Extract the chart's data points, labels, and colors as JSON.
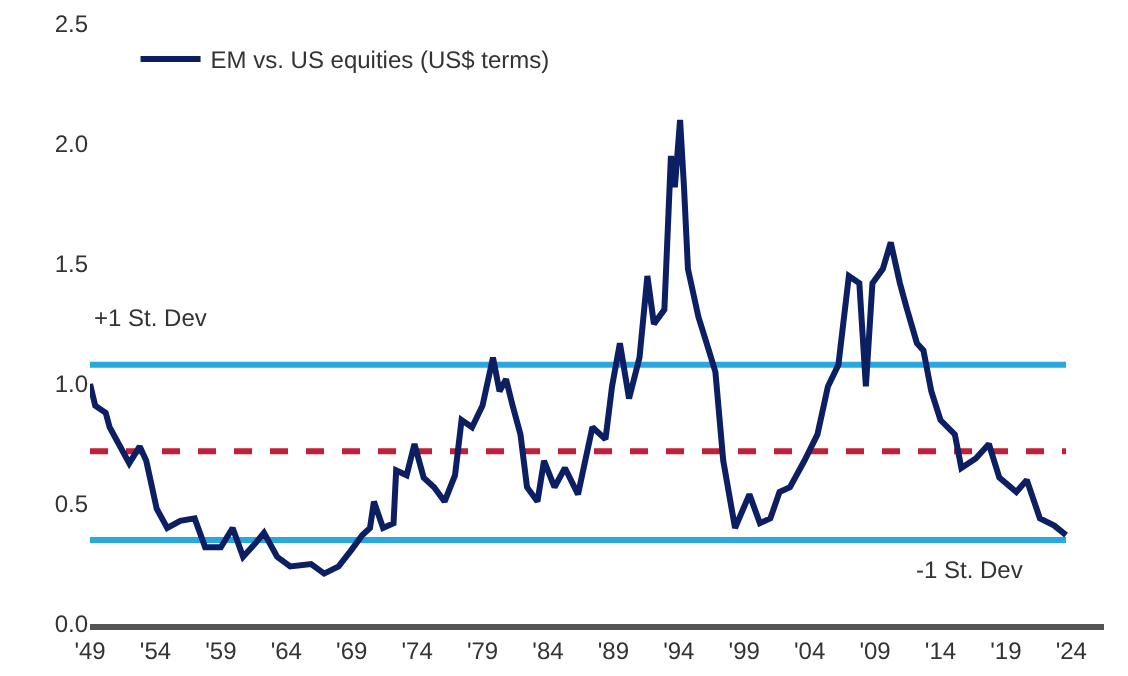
{
  "chart_data": {
    "type": "line",
    "legend": "top left",
    "grid": false,
    "marker": "none",
    "line_style": "solid",
    "xlim": [
      1949,
      2026.5
    ],
    "xticks": [
      {
        "value": 1949,
        "label": "'49"
      },
      {
        "value": 1954,
        "label": "'54"
      },
      {
        "value": 1959,
        "label": "'59"
      },
      {
        "value": 1964,
        "label": "'64"
      },
      {
        "value": 1969,
        "label": "'69"
      },
      {
        "value": 1974,
        "label": "'74"
      },
      {
        "value": 1979,
        "label": "'79"
      },
      {
        "value": 1984,
        "label": "'84"
      },
      {
        "value": 1989,
        "label": "'89"
      },
      {
        "value": 1994,
        "label": "'94"
      },
      {
        "value": 1999,
        "label": "'99"
      },
      {
        "value": 2004,
        "label": "'04"
      },
      {
        "value": 2009,
        "label": "'09"
      },
      {
        "value": 2014,
        "label": "'14"
      },
      {
        "value": 2019,
        "label": "'19"
      },
      {
        "value": 2024,
        "label": "'24"
      }
    ],
    "ylim": [
      0,
      2.5
    ],
    "yticks": [
      {
        "value": 0,
        "label": "0.0"
      },
      0.5,
      {
        "value": 1,
        "label": "1.0"
      },
      1.5,
      {
        "value": 2,
        "label": "2.0"
      },
      2.5
    ],
    "ref_lines": [
      {
        "axis": "y",
        "value": 1.08,
        "label": "+1 St. Dev",
        "color": "#29a8e0",
        "line_style": "solid"
      },
      {
        "axis": "y",
        "value": 0.72,
        "label": null,
        "color": "#c0203a",
        "line_style": "dashed"
      },
      {
        "axis": "y",
        "value": 0.35,
        "label": "-1 St. Dev",
        "color": "#29a8e0",
        "line_style": "solid"
      }
    ],
    "series": [
      {
        "name": "EM vs. US equities (US$ terms)",
        "color": "#0d1f63",
        "x": [
          1949.0,
          1949.4,
          1950.2,
          1950.5,
          1951.0,
          1952.0,
          1952.8,
          1953.3,
          1954.1,
          1954.9,
          1955.9,
          1957.0,
          1957.8,
          1959.0,
          1959.9,
          1960.7,
          1961.7,
          1962.3,
          1963.3,
          1964.3,
          1965.9,
          1966.9,
          1968.0,
          1969.0,
          1969.8,
          1970.4,
          1970.7,
          1971.4,
          1972.2,
          1972.4,
          1973.2,
          1973.8,
          1974.5,
          1975.3,
          1976.1,
          1976.9,
          1977.4,
          1978.2,
          1979.0,
          1979.8,
          1980.3,
          1980.8,
          1981.3,
          1981.9,
          1982.4,
          1983.2,
          1983.7,
          1984.5,
          1985.3,
          1986.3,
          1987.4,
          1988.4,
          1988.9,
          1989.5,
          1990.2,
          1991.0,
          1991.6,
          1992.1,
          1992.9,
          1993.4,
          1993.7,
          1994.1,
          1994.4,
          1994.7,
          1995.5,
          1996.3,
          1996.8,
          1997.4,
          1998.3,
          1999.4,
          2000.2,
          2001.0,
          2001.7,
          2002.5,
          2003.6,
          2004.6,
          2005.4,
          2006.2,
          2007.0,
          2007.8,
          2008.3,
          2008.8,
          2009.6,
          2010.2,
          2010.9,
          2011.4,
          2012.2,
          2012.7,
          2013.3,
          2014.0,
          2015.1,
          2015.6,
          2016.7,
          2017.7,
          2018.5,
          2019.8,
          2020.6,
          2021.6,
          2022.7,
          2023.6
        ],
        "values": [
          1.0,
          0.91,
          0.88,
          0.82,
          0.77,
          0.67,
          0.74,
          0.68,
          0.48,
          0.4,
          0.43,
          0.44,
          0.32,
          0.32,
          0.4,
          0.28,
          0.34,
          0.38,
          0.28,
          0.24,
          0.25,
          0.21,
          0.24,
          0.31,
          0.37,
          0.4,
          0.51,
          0.4,
          0.42,
          0.64,
          0.62,
          0.75,
          0.61,
          0.57,
          0.51,
          0.62,
          0.85,
          0.82,
          0.91,
          1.11,
          0.97,
          1.02,
          0.91,
          0.79,
          0.57,
          0.51,
          0.68,
          0.57,
          0.65,
          0.54,
          0.82,
          0.77,
          0.99,
          1.17,
          0.94,
          1.11,
          1.45,
          1.25,
          1.31,
          1.95,
          1.82,
          2.1,
          1.82,
          1.48,
          1.28,
          1.14,
          1.05,
          0.68,
          0.4,
          0.54,
          0.42,
          0.44,
          0.55,
          0.57,
          0.68,
          0.79,
          0.99,
          1.08,
          1.45,
          1.42,
          0.99,
          1.42,
          1.48,
          1.59,
          1.42,
          1.32,
          1.17,
          1.14,
          0.97,
          0.85,
          0.79,
          0.65,
          0.69,
          0.75,
          0.61,
          0.55,
          0.6,
          0.44,
          0.41,
          0.37
        ]
      }
    ]
  }
}
